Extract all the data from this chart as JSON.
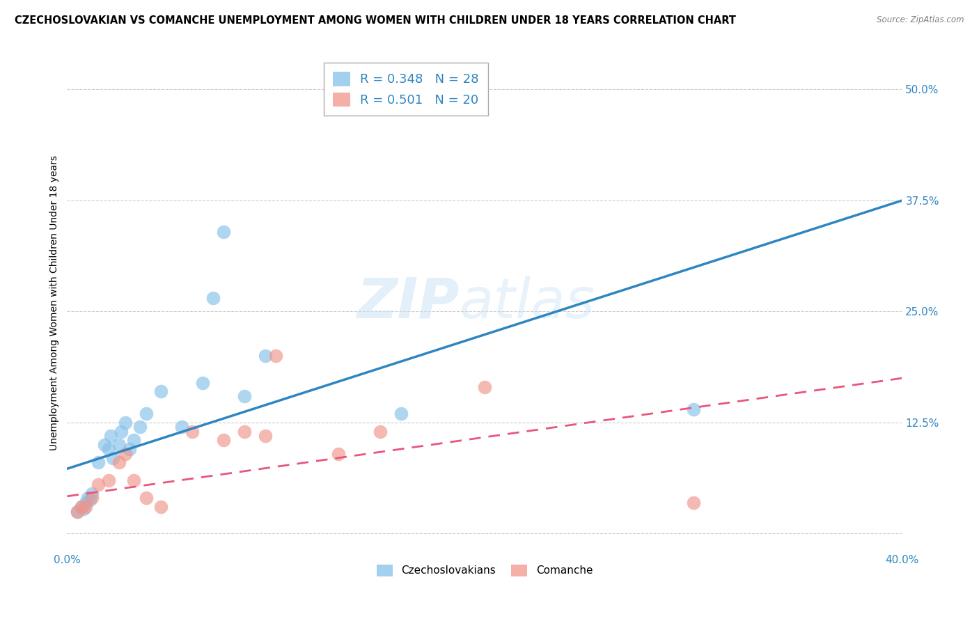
{
  "title": "CZECHOSLOVAKIAN VS COMANCHE UNEMPLOYMENT AMONG WOMEN WITH CHILDREN UNDER 18 YEARS CORRELATION CHART",
  "source": "Source: ZipAtlas.com",
  "ylabel_label": "Unemployment Among Women with Children Under 18 years",
  "x_min": 0.0,
  "x_max": 0.4,
  "y_min": -0.02,
  "y_max": 0.54,
  "x_ticks": [
    0.0,
    0.4
  ],
  "x_tick_labels": [
    "0.0%",
    "40.0%"
  ],
  "y_ticks": [
    0.0,
    0.125,
    0.25,
    0.375,
    0.5
  ],
  "y_tick_labels": [
    "",
    "12.5%",
    "25.0%",
    "37.5%",
    "50.0%"
  ],
  "grid_color": "#cccccc",
  "background_color": "#ffffff",
  "czech_color": "#85c1e9",
  "comanche_color": "#f1948a",
  "czech_line_color": "#2e86c1",
  "comanche_line_color": "#e8567a",
  "czech_R": 0.348,
  "czech_N": 28,
  "comanche_R": 0.501,
  "comanche_N": 20,
  "watermark_zip": "ZIP",
  "watermark_atlas": "atlas",
  "legend_label_czech": "Czechoslovakians",
  "legend_label_comanche": "Comanche",
  "czech_x": [
    0.005,
    0.007,
    0.008,
    0.009,
    0.01,
    0.011,
    0.012,
    0.015,
    0.018,
    0.02,
    0.021,
    0.022,
    0.025,
    0.026,
    0.028,
    0.03,
    0.032,
    0.035,
    0.038,
    0.045,
    0.055,
    0.065,
    0.07,
    0.075,
    0.085,
    0.095,
    0.16,
    0.3
  ],
  "czech_y": [
    0.025,
    0.03,
    0.028,
    0.035,
    0.04,
    0.038,
    0.045,
    0.08,
    0.1,
    0.095,
    0.11,
    0.085,
    0.1,
    0.115,
    0.125,
    0.095,
    0.105,
    0.12,
    0.135,
    0.16,
    0.12,
    0.17,
    0.265,
    0.34,
    0.155,
    0.2,
    0.135,
    0.14
  ],
  "comanche_x": [
    0.005,
    0.007,
    0.009,
    0.012,
    0.015,
    0.02,
    0.025,
    0.028,
    0.032,
    0.038,
    0.045,
    0.06,
    0.075,
    0.085,
    0.095,
    0.1,
    0.13,
    0.15,
    0.2,
    0.3
  ],
  "comanche_y": [
    0.025,
    0.03,
    0.03,
    0.04,
    0.055,
    0.06,
    0.08,
    0.09,
    0.06,
    0.04,
    0.03,
    0.115,
    0.105,
    0.115,
    0.11,
    0.2,
    0.09,
    0.115,
    0.165,
    0.035
  ],
  "czech_line_y_start": 0.073,
  "czech_line_y_end": 0.375,
  "comanche_line_y_start": 0.042,
  "comanche_line_y_end": 0.175,
  "title_fontsize": 10.5,
  "axis_label_fontsize": 10,
  "tick_fontsize": 11,
  "legend_fontsize": 13
}
